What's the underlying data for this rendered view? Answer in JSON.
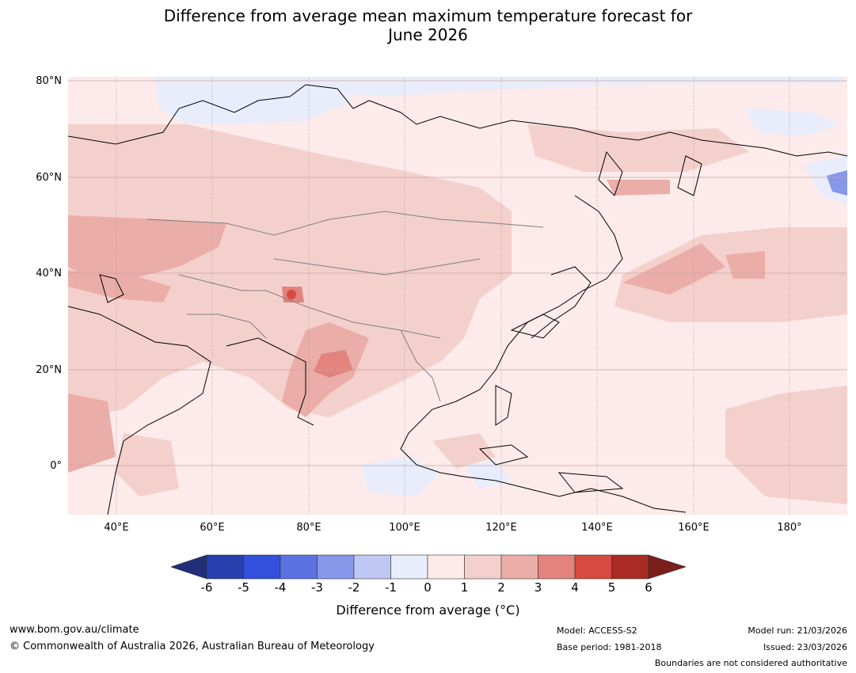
{
  "title": {
    "line1": "Difference from average mean maximum temperature forecast for",
    "line2": "June 2026"
  },
  "map": {
    "region": "Asia and western Pacific",
    "lat_labels": [
      "80°N",
      "60°N",
      "40°N",
      "20°N",
      "0°"
    ],
    "lon_labels": [
      "40°E",
      "60°E",
      "80°E",
      "100°E",
      "120°E",
      "140°E",
      "160°E",
      "180°"
    ],
    "extent": {
      "lon_min": 30,
      "lon_max": 192,
      "lat_min": -10,
      "lat_max": 80
    }
  },
  "colorbar": {
    "ticks": [
      "-6",
      "-5",
      "-4",
      "-3",
      "-2",
      "-1",
      "0",
      "1",
      "2",
      "3",
      "4",
      "5",
      "6"
    ],
    "colors": [
      "#1f2f7a",
      "#283fae",
      "#3250db",
      "#5b72e3",
      "#8797ea",
      "#bfc8f3",
      "#e9ecfb",
      "#fcebea",
      "#f4d0cc",
      "#ebada8",
      "#e2837d",
      "#d64a40",
      "#a82b24",
      "#7a1f1b"
    ],
    "label": "Difference from average (°C)"
  },
  "footer": {
    "website": "www.bom.gov.au/climate",
    "copyright": "© Commonwealth of Australia 2026, Australian Bureau of Meteorology",
    "model": "Model: ACCESS-S2",
    "base_period": "Base period: 1981-2018",
    "model_run": "Model run: 21/03/2026",
    "issued": "Issued: 23/03/2026",
    "disclaimer": "Boundaries are not considered authoritative"
  }
}
